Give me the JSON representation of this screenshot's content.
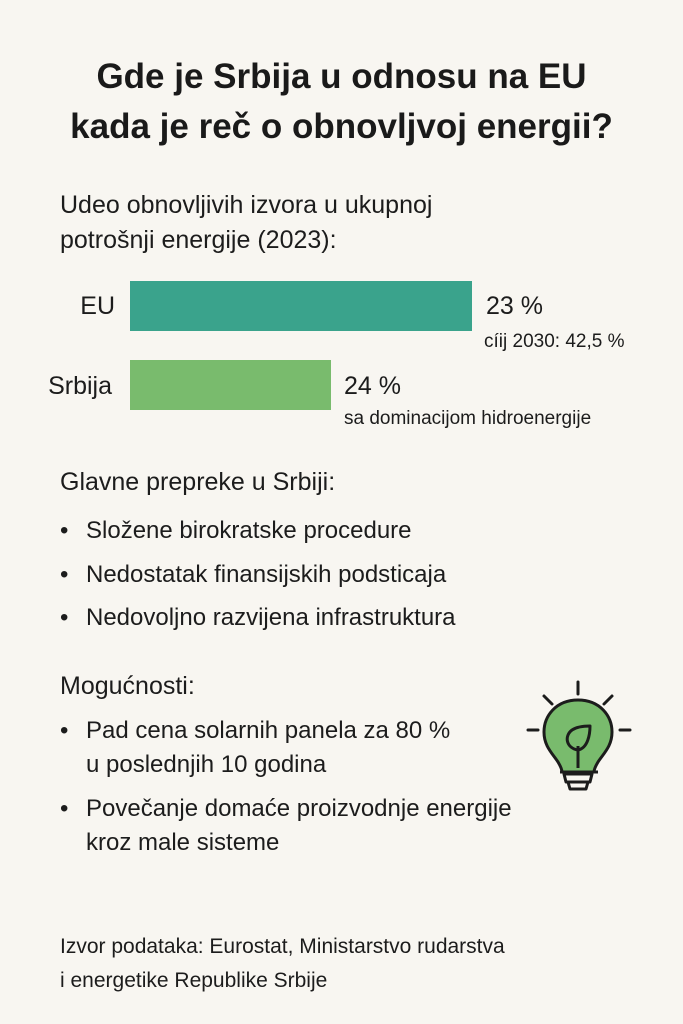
{
  "title_line1": "Gde je Srbija u odnosu na EU",
  "title_line2": "kada je reč o obnovljvoj energii?",
  "chart_data": {
    "type": "bar",
    "title": "Udeo obnovljivih izvora u ukupnoj potrošnji energije (2023):",
    "title_line1": "Udeo obnovljivih izvora u ukupnoj",
    "title_line2": "potrošnji energije (2023):",
    "categories": [
      "EU",
      "Srbija"
    ],
    "values": [
      23,
      24
    ],
    "value_labels": [
      "23 %",
      "24 %"
    ],
    "notes": [
      "cíij 2030: 42,5 %",
      "sa dominacijom hidroenergije"
    ],
    "colors": [
      "#3aa38c",
      "#79bb6d"
    ],
    "orientation": "horizontal"
  },
  "obstacles": {
    "heading": "Glavne prepreke u Srbiji:",
    "items": [
      "Složene birokratske procedure",
      "Nedostatak finansijskih podsticaja",
      "Nedovoljno razvijena infrastruktura"
    ]
  },
  "opportunities": {
    "heading": "Mogućnosti:",
    "items": [
      {
        "line1": "Pad cena solarnih panela za 80 %",
        "line2": "u poslednjih 10 godina"
      },
      {
        "line1": "Povečanje domaće proizvodnje energije",
        "line2": "kroz male sisteme"
      }
    ],
    "icon": "lightbulb-leaf-icon"
  },
  "bullet": "•",
  "source_line1": "Izvor podataka: Eurostat, Ministarstvo rudarstva",
  "source_line2": "i energetike Republike Srbije"
}
